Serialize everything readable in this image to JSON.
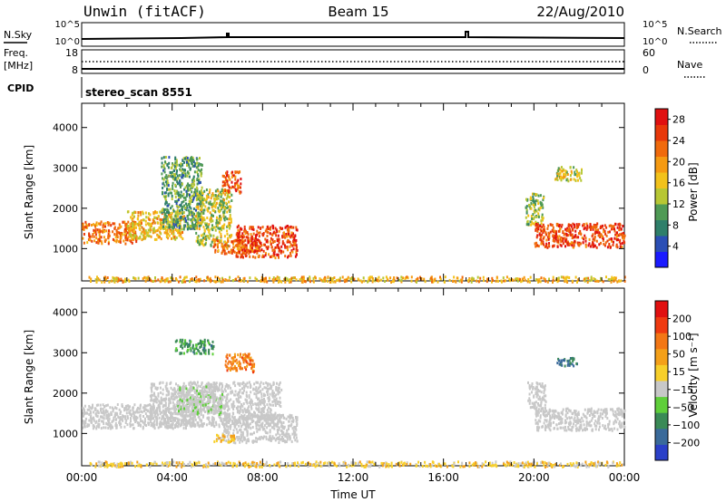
{
  "header": {
    "title_left": "Unwin (fitACF)",
    "title_center": "Beam 15",
    "title_right": "22/Aug/2010"
  },
  "small_panels": {
    "nsky_label": "N.Sky",
    "nsky_ticks": [
      "10^5",
      "10^0"
    ],
    "nsearch_label": "N.Search",
    "freq_label_top": "Freq.",
    "freq_label_unit": "[MHz]",
    "freq_ticks": [
      "18",
      "8"
    ],
    "nave_label": "Nave",
    "nave_ticks": [
      "60",
      "0"
    ],
    "cpid_label": "CPID",
    "cpid_text": "stereo_scan 8551"
  },
  "colors": {
    "power_scale": [
      "#1a1aff",
      "#2b4fb5",
      "#2f7f6a",
      "#4f9a55",
      "#b7c734",
      "#f2c21b",
      "#f59a12",
      "#f06a0c",
      "#e8380a",
      "#e01010"
    ],
    "velocity_scale": [
      "#2b40c8",
      "#3a6a9a",
      "#3a8a56",
      "#5fcf3a",
      "#c8c8c8",
      "#f7cf2a",
      "#f4a019",
      "#f37715",
      "#ef3a10",
      "#e11010"
    ]
  },
  "chart_data": [
    {
      "type": "heatmap",
      "name": "power",
      "ylabel": "Slant Range [km]",
      "xlabel": "",
      "x_domain_hours": [
        0,
        24
      ],
      "ylim": [
        200,
        4600
      ],
      "y_ticks": [
        "1000",
        "2000",
        "3000",
        "4000"
      ],
      "colorbar": {
        "label": "Power [dB]",
        "tick_values": [
          "4",
          "8",
          "12",
          "16",
          "20",
          "24",
          "28"
        ],
        "range": [
          0,
          30
        ]
      },
      "regions": [
        {
          "t0": 0.0,
          "t1": 2.4,
          "r0": 1150,
          "r1": 1700,
          "level": 22
        },
        {
          "t0": 2.0,
          "t1": 4.5,
          "r0": 1250,
          "r1": 1950,
          "level": 17
        },
        {
          "t0": 3.5,
          "t1": 5.3,
          "r0": 1500,
          "r1": 3300,
          "level": 10
        },
        {
          "t0": 5.0,
          "t1": 6.6,
          "r0": 1100,
          "r1": 2500,
          "level": 14
        },
        {
          "t0": 6.2,
          "t1": 7.0,
          "r0": 2400,
          "r1": 2950,
          "level": 24
        },
        {
          "t0": 5.8,
          "t1": 7.8,
          "r0": 900,
          "r1": 1250,
          "level": 22
        },
        {
          "t0": 6.8,
          "t1": 9.5,
          "r0": 800,
          "r1": 1600,
          "level": 25
        },
        {
          "t0": 19.6,
          "t1": 20.4,
          "r0": 1600,
          "r1": 2400,
          "level": 12
        },
        {
          "t0": 20.0,
          "t1": 24.0,
          "r0": 1050,
          "r1": 1650,
          "level": 25
        },
        {
          "t0": 20.9,
          "t1": 22.1,
          "r0": 2700,
          "r1": 3050,
          "level": 15
        },
        {
          "t0": 0.3,
          "t1": 24.0,
          "r0": 200,
          "r1": 330,
          "level": 18
        }
      ]
    },
    {
      "type": "heatmap",
      "name": "velocity",
      "ylabel": "Slant Range [km]",
      "xlabel": "Time UT",
      "x_domain_hours": [
        0,
        24
      ],
      "x_ticks": [
        "00:00",
        "04:00",
        "08:00",
        "12:00",
        "16:00",
        "20:00",
        "00:00"
      ],
      "ylim": [
        200,
        4600
      ],
      "y_ticks": [
        "1000",
        "2000",
        "3000",
        "4000"
      ],
      "colorbar": {
        "label": "Velocity [m s⁻¹]",
        "tick_values": [
          "200",
          "100",
          "50",
          "15",
          "−15",
          "−50",
          "−100",
          "−200"
        ],
        "range": [
          -250,
          250
        ]
      },
      "regions": [
        {
          "t0": 0.0,
          "t1": 5.0,
          "r0": 1150,
          "r1": 1750,
          "level": 0
        },
        {
          "t0": 3.0,
          "t1": 8.8,
          "r0": 1200,
          "r1": 2300,
          "level": 0
        },
        {
          "t0": 6.2,
          "t1": 9.5,
          "r0": 800,
          "r1": 1500,
          "level": -5
        },
        {
          "t0": 4.2,
          "t1": 6.2,
          "r0": 1500,
          "r1": 2200,
          "level": -30
        },
        {
          "t0": 6.3,
          "t1": 7.6,
          "r0": 2550,
          "r1": 3000,
          "level": 120
        },
        {
          "t0": 4.1,
          "t1": 5.8,
          "r0": 3000,
          "r1": 3350,
          "level": -120
        },
        {
          "t0": 5.8,
          "t1": 6.8,
          "r0": 820,
          "r1": 1000,
          "level": 40
        },
        {
          "t0": 20.0,
          "t1": 24.0,
          "r0": 1100,
          "r1": 1650,
          "level": 0
        },
        {
          "t0": 19.7,
          "t1": 20.5,
          "r0": 1650,
          "r1": 2300,
          "level": 0
        },
        {
          "t0": 21.0,
          "t1": 22.0,
          "r0": 2700,
          "r1": 2900,
          "level": -150
        },
        {
          "t0": 0.3,
          "t1": 24.0,
          "r0": 200,
          "r1": 330,
          "level": 30
        }
      ]
    }
  ]
}
